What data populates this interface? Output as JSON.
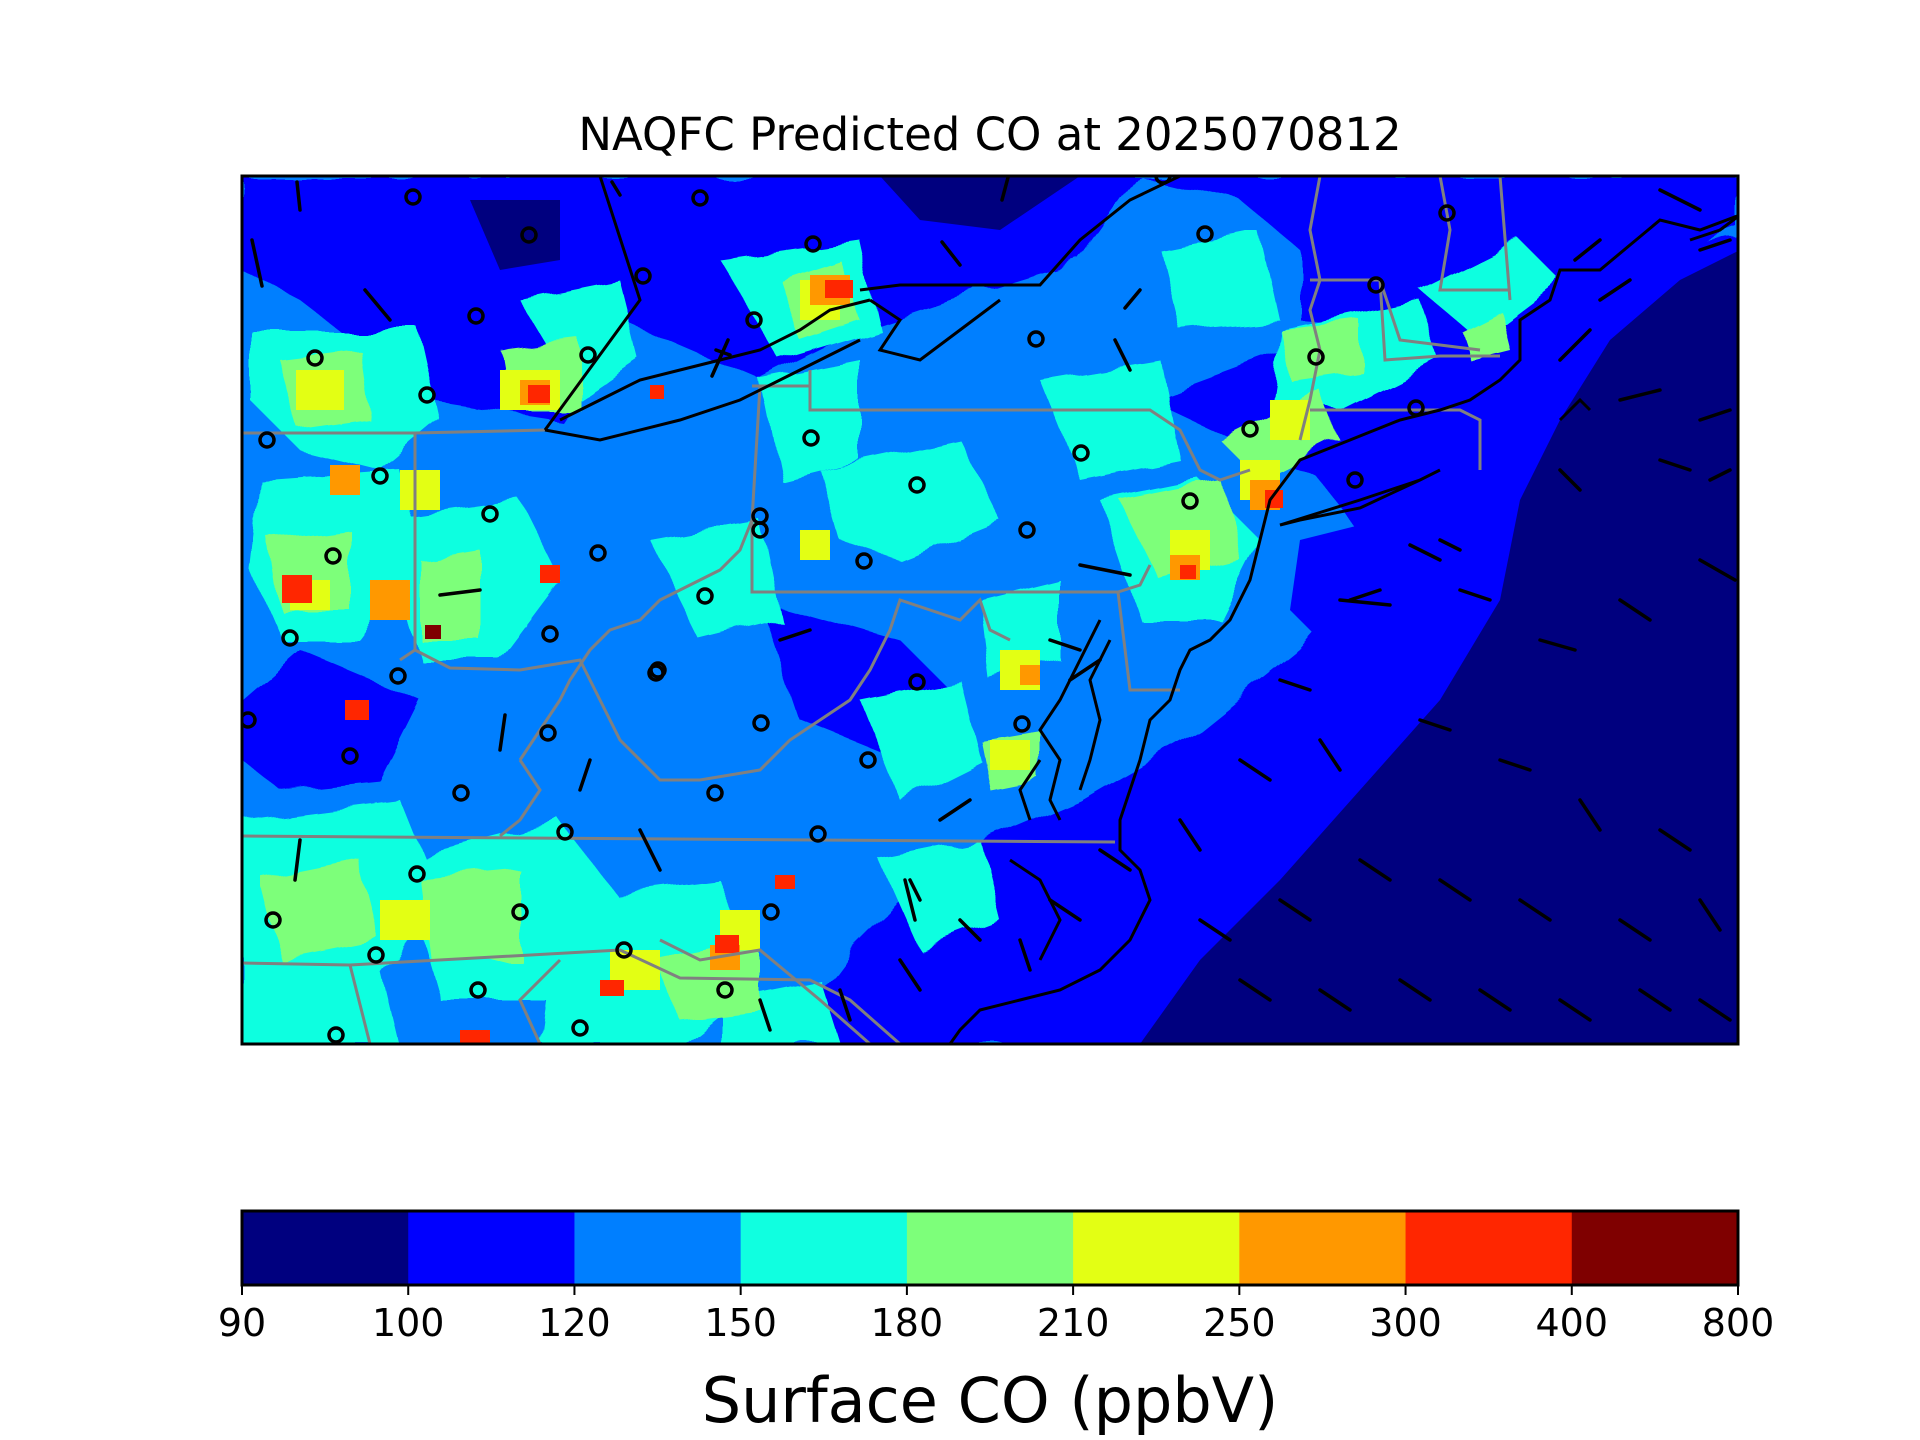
{
  "title": "NAQFC Predicted CO at 2025070812",
  "colorbar": {
    "label": "Surface CO (ppbV)",
    "boundaries": [
      "90",
      "100",
      "120",
      "150",
      "180",
      "210",
      "250",
      "300",
      "400",
      "800"
    ],
    "colors": [
      "#00007f",
      "#0000ff",
      "#007fff",
      "#10ffe0",
      "#7dff7a",
      "#e3ff14",
      "#ff9800",
      "#ff2600",
      "#7f0000"
    ]
  },
  "map": {
    "land_background": "#007fff",
    "ocean_color": "#00007f",
    "near_shore_color": "#0000ff",
    "coastline_color": "#000000",
    "state_border_color": "#808080",
    "front_color": "#000000",
    "station_marker": "open circle",
    "wind_marker": "wind barb"
  },
  "chart_data": {
    "type": "heatmap",
    "title": "NAQFC Predicted CO at 2025070812",
    "colorbar_label": "Surface CO (ppbV)",
    "levels": [
      90,
      100,
      120,
      150,
      180,
      210,
      250,
      300,
      400,
      800
    ],
    "units": "ppbV",
    "dominant_ranges": {
      "atlantic_ocean": "90-100",
      "offshore_band": "100-120",
      "inland_land": "120-180",
      "urban_corridor_peaks": "250-400"
    }
  }
}
